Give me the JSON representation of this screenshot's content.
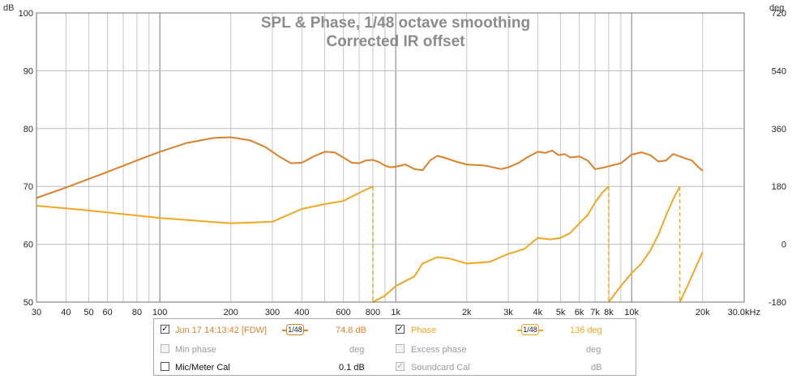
{
  "chart_data": {
    "type": "line",
    "title": "SPL & Phase, 1/48 octave smoothing",
    "subtitle": "Corrected IR offset",
    "x_axis": {
      "scale": "log",
      "range": [
        30,
        30000
      ],
      "tick_labels": [
        {
          "value": 30,
          "label": "30"
        },
        {
          "value": 40,
          "label": "40"
        },
        {
          "value": 50,
          "label": "50"
        },
        {
          "value": 60,
          "label": "60"
        },
        {
          "value": 80,
          "label": "80"
        },
        {
          "value": 100,
          "label": "100"
        },
        {
          "value": 200,
          "label": "200"
        },
        {
          "value": 300,
          "label": "300"
        },
        {
          "value": 400,
          "label": "400"
        },
        {
          "value": 600,
          "label": "600"
        },
        {
          "value": 800,
          "label": "800"
        },
        {
          "value": 1000,
          "label": "1k"
        },
        {
          "value": 2000,
          "label": "2k"
        },
        {
          "value": 3000,
          "label": "3k"
        },
        {
          "value": 4000,
          "label": "4k"
        },
        {
          "value": 5000,
          "label": "5k"
        },
        {
          "value": 6000,
          "label": "6k"
        },
        {
          "value": 7000,
          "label": "7k"
        },
        {
          "value": 8000,
          "label": "8k"
        },
        {
          "value": 10000,
          "label": "10k"
        },
        {
          "value": 20000,
          "label": "20k"
        },
        {
          "value": 30000,
          "label": "30.0kHz"
        }
      ]
    },
    "y_left": {
      "unit": "dB",
      "range": [
        50,
        100
      ],
      "ticks": [
        50,
        60,
        70,
        80,
        90,
        100
      ]
    },
    "y_right": {
      "unit": "deg",
      "range": [
        -180,
        720
      ],
      "ticks": [
        -180,
        0,
        180,
        360,
        540,
        720
      ]
    },
    "grid": true,
    "series": [
      {
        "name": "Jun 17 14:13:42 [FDW]",
        "axis": "left",
        "color": "#d9822b",
        "points": [
          [
            30,
            68.0
          ],
          [
            40,
            69.8
          ],
          [
            50,
            71.3
          ],
          [
            60,
            72.5
          ],
          [
            80,
            74.5
          ],
          [
            100,
            76.0
          ],
          [
            130,
            77.5
          ],
          [
            170,
            78.4
          ],
          [
            200,
            78.5
          ],
          [
            240,
            78.0
          ],
          [
            280,
            76.8
          ],
          [
            320,
            75.2
          ],
          [
            360,
            74.0
          ],
          [
            400,
            74.1
          ],
          [
            450,
            75.2
          ],
          [
            500,
            76.0
          ],
          [
            550,
            75.9
          ],
          [
            600,
            75.0
          ],
          [
            650,
            74.1
          ],
          [
            700,
            74.0
          ],
          [
            750,
            74.5
          ],
          [
            800,
            74.6
          ],
          [
            850,
            74.2
          ],
          [
            900,
            73.6
          ],
          [
            950,
            73.3
          ],
          [
            1000,
            73.4
          ],
          [
            1100,
            73.8
          ],
          [
            1200,
            73.0
          ],
          [
            1300,
            72.8
          ],
          [
            1400,
            74.5
          ],
          [
            1500,
            75.3
          ],
          [
            1600,
            75.0
          ],
          [
            1800,
            74.3
          ],
          [
            2000,
            73.8
          ],
          [
            2400,
            73.6
          ],
          [
            2800,
            73.0
          ],
          [
            3000,
            73.3
          ],
          [
            3300,
            74.0
          ],
          [
            3600,
            75.0
          ],
          [
            4000,
            76.0
          ],
          [
            4300,
            75.8
          ],
          [
            4600,
            76.2
          ],
          [
            4900,
            75.4
          ],
          [
            5200,
            75.6
          ],
          [
            5500,
            75.0
          ],
          [
            6000,
            75.2
          ],
          [
            6500,
            74.5
          ],
          [
            7000,
            73.0
          ],
          [
            7500,
            73.2
          ],
          [
            8000,
            73.5
          ],
          [
            9000,
            74.0
          ],
          [
            10000,
            75.5
          ],
          [
            11000,
            75.9
          ],
          [
            12000,
            75.4
          ],
          [
            13000,
            74.3
          ],
          [
            14000,
            74.5
          ],
          [
            15000,
            75.6
          ],
          [
            16000,
            75.2
          ],
          [
            17000,
            74.8
          ],
          [
            18000,
            74.5
          ],
          [
            19000,
            73.5
          ],
          [
            20000,
            72.7
          ]
        ]
      },
      {
        "name": "Phase",
        "axis": "right",
        "color": "#f0a723",
        "points": [
          [
            30,
            120
          ],
          [
            50,
            105
          ],
          [
            100,
            82
          ],
          [
            200,
            65
          ],
          [
            300,
            70
          ],
          [
            400,
            110
          ],
          [
            500,
            125
          ],
          [
            600,
            135
          ],
          [
            700,
            160
          ],
          [
            800,
            180
          ],
          [
            800,
            -180
          ],
          [
            900,
            -160
          ],
          [
            1000,
            -130
          ],
          [
            1200,
            -100
          ],
          [
            1300,
            -60
          ],
          [
            1500,
            -40
          ],
          [
            1700,
            -45
          ],
          [
            2000,
            -60
          ],
          [
            2500,
            -55
          ],
          [
            3000,
            -30
          ],
          [
            3500,
            -15
          ],
          [
            4000,
            20
          ],
          [
            4500,
            15
          ],
          [
            5000,
            20
          ],
          [
            5500,
            35
          ],
          [
            6000,
            65
          ],
          [
            6500,
            90
          ],
          [
            7000,
            130
          ],
          [
            7500,
            160
          ],
          [
            8000,
            180
          ],
          [
            8000,
            -180
          ],
          [
            9000,
            -130
          ],
          [
            10000,
            -90
          ],
          [
            11000,
            -60
          ],
          [
            12000,
            -20
          ],
          [
            13000,
            30
          ],
          [
            14000,
            90
          ],
          [
            15000,
            140
          ],
          [
            16000,
            180
          ],
          [
            16000,
            -180
          ],
          [
            17000,
            -140
          ],
          [
            18000,
            -100
          ],
          [
            19000,
            -60
          ],
          [
            20000,
            -25
          ]
        ]
      }
    ]
  },
  "axis_labels": {
    "left_unit": "dB",
    "right_unit": "deg"
  },
  "legend": {
    "row1": {
      "left_label": "Jun 17 14:13:42 [FDW]",
      "left_checked": true,
      "left_smoothing": "1/48",
      "left_value": "74.8 dB",
      "right_label": "Phase",
      "right_checked": true,
      "right_smoothing": "1/48",
      "right_value": "136 deg"
    },
    "row2": {
      "left_label": "Min phase",
      "left_unit": "deg",
      "right_label": "Excess phase",
      "right_unit": "deg"
    },
    "row3": {
      "left_label": "Mic/Meter Cal",
      "left_value": "0.1 dB",
      "right_label": "Soundcard Cal",
      "right_checked": true,
      "right_unit": "dB"
    }
  }
}
